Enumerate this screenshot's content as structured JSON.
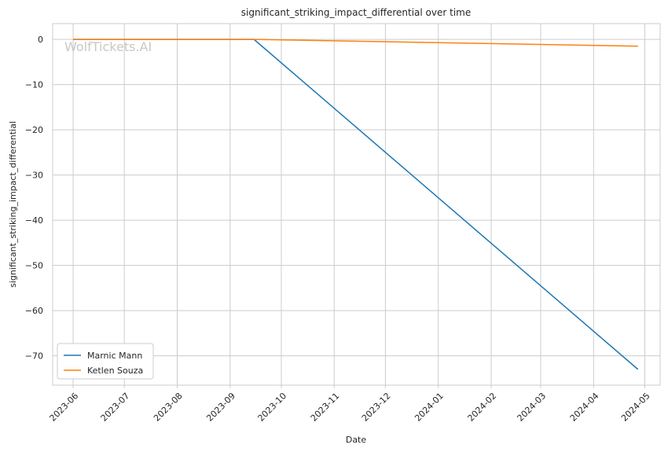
{
  "chart_data": {
    "type": "line",
    "title": "significant_striking_impact_differential over time",
    "xlabel": "Date",
    "ylabel": "significant_striking_impact_differential",
    "watermark": "WolfTickets.AI",
    "x_ticks": [
      "2023-06",
      "2023-07",
      "2023-08",
      "2023-09",
      "2023-10",
      "2023-11",
      "2023-12",
      "2024-01",
      "2024-02",
      "2024-03",
      "2024-04",
      "2024-05"
    ],
    "y_ticks": [
      "0",
      "−10",
      "−20",
      "−30",
      "−40",
      "−50",
      "−60",
      "−70"
    ],
    "y_tick_values": [
      0,
      -10,
      -20,
      -30,
      -40,
      -50,
      -60,
      -70
    ],
    "xlim": [
      "2023-05-20",
      "2024-05-10"
    ],
    "ylim": [
      -76.5,
      3.5
    ],
    "grid": true,
    "legend_position": "bottom-left",
    "series": [
      {
        "name": "Marnic Mann",
        "color": "#1f77b4",
        "x": [
          "2023-06-01",
          "2023-09-15",
          "2024-04-27"
        ],
        "y": [
          0,
          0,
          -73
        ]
      },
      {
        "name": "Ketlen Souza",
        "color": "#ff7f0e",
        "x": [
          "2023-06-01",
          "2023-09-15",
          "2024-04-27"
        ],
        "y": [
          0,
          0,
          -1.5
        ]
      }
    ]
  }
}
